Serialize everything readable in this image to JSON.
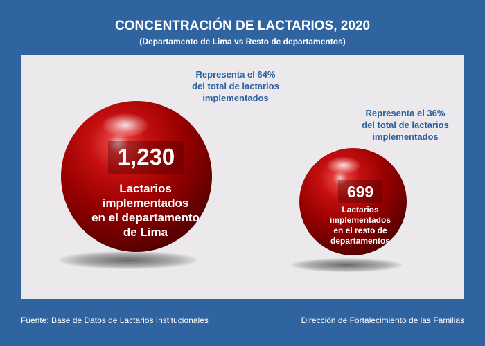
{
  "title": "CONCENTRACIÓN DE LACTARIOS, 2020",
  "subtitle": "(Departamento de Lima vs Resto de departamentos)",
  "chart_data": {
    "type": "bubble",
    "title": "CONCENTRACIÓN DE LACTARIOS, 2020",
    "subtitle": "(Departamento de Lima vs Resto de departamentos)",
    "categories": [
      "Lactarios implementados en el departamento de Lima",
      "Lactarios implementados en el resto de departamentos"
    ],
    "values": [
      1230,
      699
    ],
    "value_labels": [
      "1,230",
      "699"
    ],
    "shares": [
      "Representa el 64%\ndel total de lactarios\nimplementados",
      "Representa el 36%\ndel total de lactarios\nimplementados"
    ],
    "share_percent": [
      64,
      36
    ],
    "colors": {
      "bubble": "#b00000",
      "background": "#3064a0",
      "panel": "#ebe9eb",
      "note_text": "#2a5fa0"
    }
  },
  "bubbles": [
    {
      "value_label": "1,230",
      "desc": "Lactarios\nimplementados\nen el departamento\nde Lima",
      "note": "Representa el 64%\ndel total de lactarios\nimplementados"
    },
    {
      "value_label": "699",
      "desc": "Lactarios\nimplementados\nen el resto de\ndepartamentos",
      "note": "Representa el 36%\ndel total de lactarios\nimplementados"
    }
  ],
  "footer": {
    "source": "Fuente: Base de Datos de Lactarios Institucionales",
    "author": "Dirección de Fortalecimiento de las Familias"
  }
}
